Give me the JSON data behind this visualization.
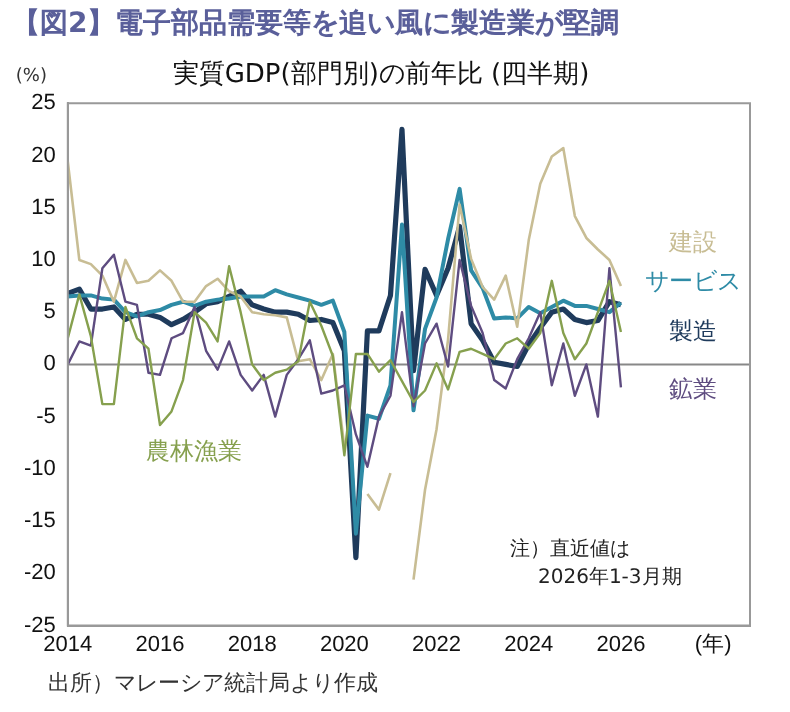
{
  "chart_data": {
    "type": "line",
    "title": "【図2】電子部品需要等を追い風に製造業が堅調",
    "subtitle": "実質GDP(部門別)の前年比 (四半期)",
    "ylabel": "(%)",
    "x": [
      2014,
      2014.25,
      2014.5,
      2014.75,
      2015,
      2015.25,
      2015.5,
      2015.75,
      2016,
      2016.25,
      2016.5,
      2016.75,
      2017,
      2017.25,
      2017.5,
      2017.75,
      2018,
      2018.25,
      2018.5,
      2018.75,
      2019,
      2019.25,
      2019.5,
      2019.75,
      2020,
      2020.25,
      2020.5,
      2020.75,
      2021,
      2021.25,
      2021.5,
      2021.75,
      2022,
      2022.25,
      2022.5,
      2022.75,
      2023,
      2023.25,
      2023.5,
      2023.75,
      2024,
      2024.25,
      2024.5,
      2024.75,
      2025,
      2025.25,
      2025.5,
      2025.75,
      2026
    ],
    "series": [
      {
        "name": "農林漁業",
        "color": "#86a04e",
        "values": [
          2.5,
          6.7,
          2.7,
          -3.8,
          -3.8,
          5.5,
          2.5,
          1.5,
          -5.8,
          -4.5,
          -1.5,
          5.0,
          4.0,
          2.2,
          9.4,
          5.0,
          0.0,
          -1.5,
          -0.8,
          -0.5,
          0.3,
          6.0,
          3.7,
          0.8,
          -8.7,
          1.0,
          1.0,
          -0.7,
          0.4,
          -1.6,
          -3.6,
          -2.5,
          0.1,
          -2.4,
          1.2,
          1.5,
          1.0,
          0.5,
          2.0,
          2.5,
          1.5,
          3.0,
          8.0,
          3.0,
          0.5,
          2.0,
          5.0,
          8.0,
          3.1
        ]
      },
      {
        "name": "鉱業",
        "color": "#5e4c80",
        "values": [
          0.0,
          2.2,
          1.8,
          9.2,
          10.5,
          6.0,
          5.7,
          -0.8,
          -1.0,
          2.5,
          3.0,
          5.5,
          1.3,
          -0.5,
          2.2,
          -1.0,
          -2.5,
          -1.0,
          -5.0,
          -1.0,
          0.5,
          2.3,
          -2.8,
          -2.5,
          -2.0,
          -6.7,
          -9.8,
          -5.0,
          -3.0,
          5.0,
          -4.0,
          2.0,
          3.9,
          -0.2,
          10.0,
          5.6,
          3.0,
          -1.5,
          -2.3,
          0.5,
          2.5,
          5.0,
          -2.0,
          2.0,
          -3.0,
          0.0,
          -5.0,
          9.2,
          -2.2
        ]
      },
      {
        "name": "建設",
        "color": "#c8bd94",
        "values": [
          19.4,
          10.0,
          9.6,
          8.5,
          6.0,
          10.0,
          7.8,
          8.0,
          9.0,
          8.0,
          6.0,
          6.0,
          7.5,
          8.2,
          7.0,
          6.5,
          5.0,
          4.8,
          4.7,
          4.5,
          0.3,
          0.5,
          -1.5,
          1.0,
          -7.9,
          null,
          -12.4,
          -13.9,
          -10.4,
          null,
          -20.6,
          -12.0,
          -6.2,
          2.4,
          15.3,
          10.1,
          7.4,
          6.2,
          8.5,
          3.6,
          11.9,
          17.3,
          19.9,
          20.7,
          14.2,
          12.1,
          11.0,
          10.0,
          7.5
        ]
      },
      {
        "name": "サービス",
        "color": "#2e8ba6",
        "values": [
          6.5,
          6.6,
          6.6,
          6.3,
          6.2,
          5.0,
          4.6,
          5.0,
          5.2,
          5.7,
          6.0,
          5.6,
          6.0,
          6.2,
          6.3,
          6.5,
          6.5,
          6.5,
          7.1,
          6.7,
          6.4,
          6.1,
          5.7,
          6.1,
          3.1,
          -16.2,
          -4.9,
          -5.2,
          -2.0,
          13.4,
          -4.4,
          3.4,
          6.4,
          12.0,
          16.8,
          9.0,
          7.3,
          4.4,
          4.5,
          4.4,
          5.5,
          4.9,
          5.5,
          6.1,
          5.6,
          5.6,
          5.3,
          5.0,
          5.9
        ]
      },
      {
        "name": "製造",
        "color": "#1f3b5c",
        "values": [
          6.8,
          7.2,
          5.3,
          5.3,
          5.5,
          4.3,
          4.8,
          4.8,
          4.5,
          3.8,
          4.3,
          5.0,
          5.8,
          6.0,
          6.5,
          7.0,
          5.7,
          5.3,
          5.0,
          5.0,
          4.8,
          4.2,
          4.3,
          4.0,
          1.3,
          -18.5,
          3.2,
          3.2,
          6.6,
          22.5,
          -0.6,
          9.1,
          6.6,
          9.2,
          13.2,
          3.9,
          2.3,
          0.2,
          0.0,
          -0.2,
          1.9,
          3.5,
          5.0,
          5.3,
          4.3,
          4.0,
          4.2,
          6.0,
          5.7
        ]
      }
    ],
    "xlim": [
      2014,
      2028.8
    ],
    "xticks": [
      2014,
      2016,
      2018,
      2020,
      2022,
      2024,
      2026,
      {
        "value": 2028,
        "label": "(年)"
      }
    ],
    "ylim": [
      -25,
      25
    ],
    "yticks": [
      -25,
      -20,
      -15,
      -10,
      -5,
      0,
      5,
      10,
      15,
      20,
      25
    ],
    "ref_lines": [
      {
        "axis": "y",
        "value": 0,
        "color": "#888888"
      }
    ],
    "grid": false,
    "legend": false,
    "annotations": [
      "注）直近値は\n2026年1-3月期",
      "出所）マレーシア統計局より作成"
    ]
  }
}
